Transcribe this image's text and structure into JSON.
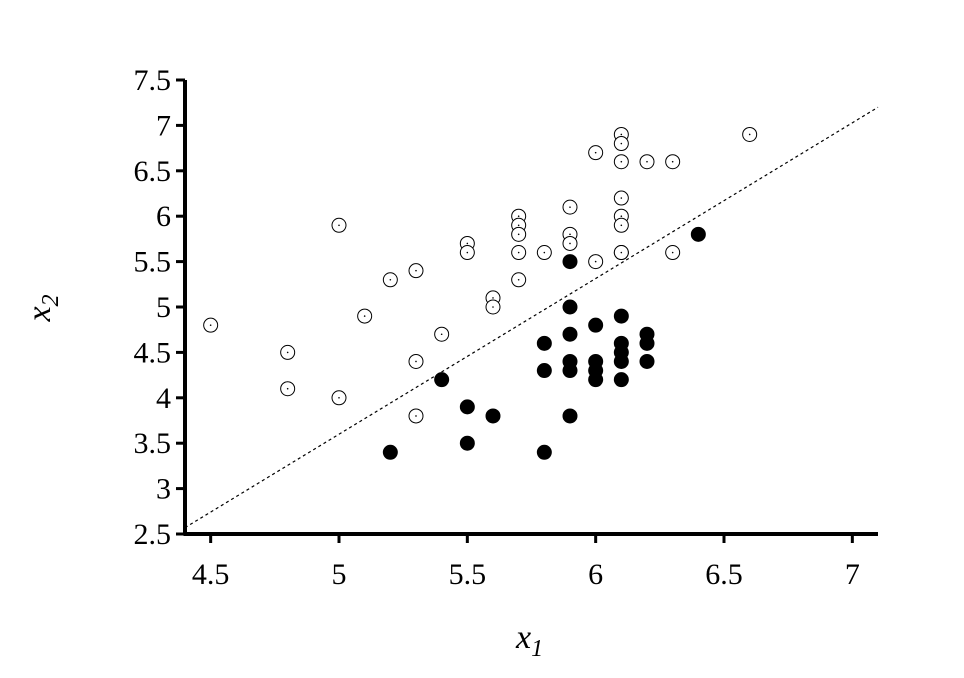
{
  "chart_data": {
    "type": "scatter",
    "title": "",
    "xlabel_base": "x",
    "xlabel_sub": "1",
    "ylabel_base": "x",
    "ylabel_sub": "2",
    "xlim": [
      4.4,
      7.1
    ],
    "ylim": [
      2.5,
      7.5
    ],
    "xticks": [
      "4.5",
      "5",
      "5.5",
      "6",
      "6.5",
      "7"
    ],
    "yticks": [
      "2.5",
      "3",
      "3.5",
      "4",
      "4.5",
      "5",
      "5.5",
      "6",
      "6.5",
      "7",
      "7.5"
    ],
    "grid": false,
    "legend": "none",
    "decision_boundary": {
      "x": [
        4.4,
        7.1
      ],
      "y": [
        2.57,
        7.2
      ],
      "style": "dotted"
    },
    "series": [
      {
        "marker": "open-circle-dot",
        "color": "#000000",
        "x": [
          4.5,
          4.8,
          4.8,
          5.0,
          5.0,
          5.1,
          5.2,
          5.3,
          5.3,
          5.3,
          5.4,
          5.5,
          5.5,
          5.6,
          5.6,
          5.7,
          5.7,
          5.7,
          5.7,
          5.7,
          5.8,
          5.9,
          5.9,
          5.9,
          6.0,
          6.0,
          6.1,
          6.1,
          6.1,
          6.1,
          6.1,
          6.1,
          6.1,
          6.1,
          6.2,
          6.3,
          6.3,
          6.6
        ],
        "y": [
          4.8,
          4.5,
          4.1,
          5.9,
          4.0,
          4.9,
          5.3,
          5.4,
          4.4,
          3.8,
          4.7,
          5.7,
          5.6,
          5.1,
          5.0,
          6.0,
          5.9,
          5.8,
          5.6,
          5.3,
          5.6,
          6.1,
          5.8,
          5.7,
          6.7,
          5.5,
          6.9,
          6.8,
          6.6,
          6.2,
          6.0,
          5.9,
          5.6,
          5.6,
          6.6,
          6.6,
          5.6,
          6.9
        ]
      },
      {
        "marker": "filled-circle",
        "color": "#000000",
        "x": [
          5.2,
          5.4,
          5.5,
          5.5,
          5.6,
          5.8,
          5.8,
          5.8,
          5.9,
          5.9,
          5.9,
          5.9,
          5.9,
          5.9,
          6.0,
          6.0,
          6.0,
          6.0,
          6.1,
          6.1,
          6.1,
          6.1,
          6.1,
          6.2,
          6.2,
          6.2,
          6.4
        ],
        "y": [
          3.4,
          4.2,
          3.9,
          3.5,
          3.8,
          4.6,
          4.3,
          3.4,
          5.5,
          5.0,
          4.7,
          4.4,
          4.3,
          3.8,
          4.8,
          4.4,
          4.3,
          4.2,
          4.9,
          4.6,
          4.5,
          4.4,
          4.2,
          4.7,
          4.6,
          4.4,
          5.8
        ]
      }
    ]
  }
}
